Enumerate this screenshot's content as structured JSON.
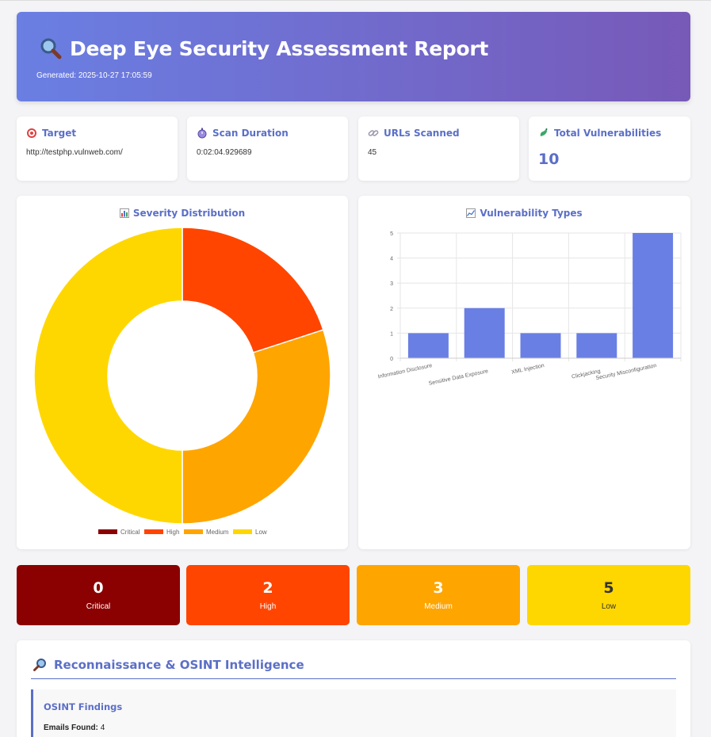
{
  "header": {
    "title": "Deep Eye Security Assessment Report",
    "generated": "Generated: 2025-10-27 17:05:59"
  },
  "info_cards": [
    {
      "label": "Target",
      "value": "http://testphp.vulnweb.com/",
      "icon": "target-icon"
    },
    {
      "label": "Scan Duration",
      "value": "0:02:04.929689",
      "icon": "stopwatch-icon"
    },
    {
      "label": "URLs Scanned",
      "value": "45",
      "icon": "link-icon"
    },
    {
      "label": "Total Vulnerabilities",
      "value": "10",
      "icon": "bug-icon"
    }
  ],
  "chart_data": [
    {
      "type": "pie",
      "title": "Severity Distribution",
      "categories": [
        "Critical",
        "High",
        "Medium",
        "Low"
      ],
      "values": [
        0,
        2,
        3,
        5
      ],
      "colors": [
        "#8b0000",
        "#ff4500",
        "#ffa500",
        "#ffd700"
      ],
      "donut": true,
      "legend": "bottom"
    },
    {
      "type": "bar",
      "title": "Vulnerability Types",
      "categories": [
        "Information Disclosure",
        "Sensitive Data Exposure",
        "XML Injection",
        "Clickjacking",
        "Security Misconfiguration"
      ],
      "values": [
        1,
        2,
        1,
        1,
        5
      ],
      "ylim": [
        0,
        5
      ],
      "yticks": [
        0,
        1,
        2,
        3,
        4,
        5
      ],
      "color": "#6a7fe3",
      "grid": true,
      "legend": "none"
    }
  ],
  "severity_boxes": [
    {
      "count": "0",
      "label": "Critical",
      "bg": "#8b0000",
      "fg": "#ffffff"
    },
    {
      "count": "2",
      "label": "High",
      "bg": "#ff4500",
      "fg": "#ffffff"
    },
    {
      "count": "3",
      "label": "Medium",
      "bg": "#ffa500",
      "fg": "#ffffff"
    },
    {
      "count": "5",
      "label": "Low",
      "bg": "#ffd700",
      "fg": "#333333"
    }
  ],
  "recon": {
    "heading": "Reconnaissance & OSINT Intelligence",
    "panel_title": "OSINT Findings",
    "emails_label": "Emails Found:",
    "emails_value": "4"
  },
  "colors": {
    "accent": "#5b6fc7"
  }
}
